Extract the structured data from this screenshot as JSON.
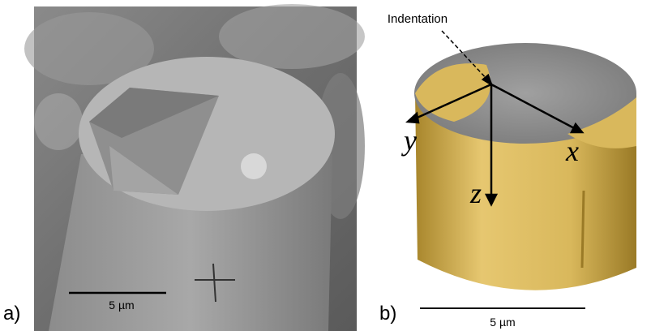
{
  "panels": [
    {
      "label": "a)",
      "scale_bar": "5 µm"
    },
    {
      "label": "b)",
      "scale_bar": "5 µm",
      "annotation": "Indentation",
      "axes": [
        "y",
        "x",
        "z"
      ]
    }
  ]
}
